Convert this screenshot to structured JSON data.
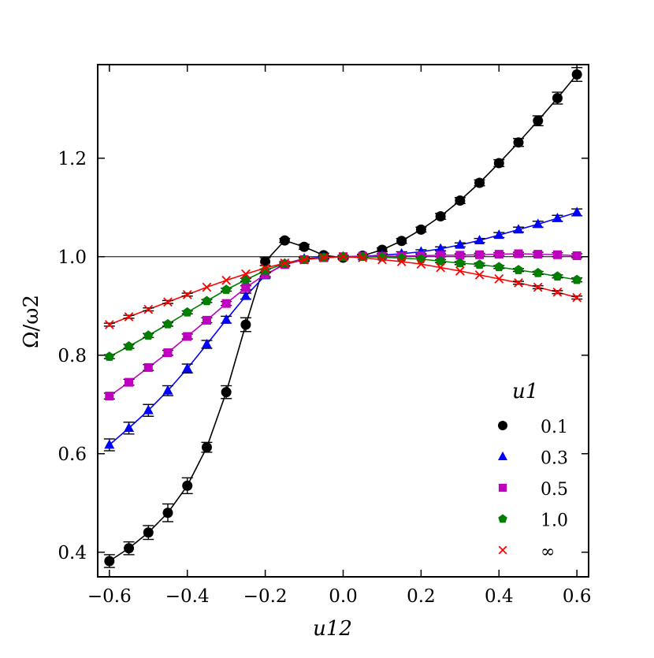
{
  "chart_data": {
    "type": "line",
    "title": "",
    "xlabel": "u12",
    "ylabel": "Ω/ω2",
    "xlim": [
      -0.63,
      0.63
    ],
    "ylim": [
      0.35,
      1.39
    ],
    "xticks": [
      -0.6,
      -0.4,
      -0.2,
      0.0,
      0.2,
      0.4,
      0.6
    ],
    "xtick_labels": [
      "−0.6",
      "−0.4",
      "−0.2",
      "0.0",
      "0.2",
      "0.4",
      "0.6"
    ],
    "yticks": [
      0.4,
      0.6,
      0.8,
      1.0,
      1.2
    ],
    "ytick_labels": [
      "0.4",
      "0.6",
      "0.8",
      "1.0",
      "1.2"
    ],
    "reference_line": 1.0,
    "legend_title": "u1",
    "legend_position": "lower-right",
    "grid": false,
    "x": [
      -0.6,
      -0.55,
      -0.5,
      -0.45,
      -0.4,
      -0.35,
      -0.3,
      -0.25,
      -0.2,
      -0.15,
      -0.1,
      -0.05,
      0.0,
      0.05,
      0.1,
      0.15,
      0.2,
      0.25,
      0.3,
      0.35,
      0.4,
      0.45,
      0.5,
      0.55,
      0.6
    ],
    "series": [
      {
        "name": "0.1",
        "marker": "circle",
        "color": "#000000",
        "values": [
          0.382,
          0.408,
          0.44,
          0.48,
          0.535,
          0.613,
          0.725,
          0.862,
          0.99,
          1.033,
          1.02,
          1.003,
          0.998,
          1.002,
          1.014,
          1.032,
          1.055,
          1.082,
          1.114,
          1.15,
          1.19,
          1.232,
          1.276,
          1.322,
          1.37
        ],
        "errors": [
          0.013,
          0.013,
          0.014,
          0.018,
          0.016,
          0.01,
          0.013,
          0.014,
          0.008,
          0.004,
          0.005,
          0.004,
          0.003,
          0.003,
          0.004,
          0.005,
          0.005,
          0.006,
          0.006,
          0.006,
          0.007,
          0.008,
          0.01,
          0.012,
          0.014
        ]
      },
      {
        "name": "0.3",
        "marker": "triangle",
        "color": "#0000ff",
        "values": [
          0.618,
          0.652,
          0.688,
          0.728,
          0.773,
          0.822,
          0.872,
          0.92,
          0.962,
          0.986,
          0.996,
          0.999,
          1.0,
          1.001,
          1.003,
          1.006,
          1.01,
          1.016,
          1.024,
          1.033,
          1.044,
          1.055,
          1.066,
          1.078,
          1.09
        ],
        "errors": [
          0.012,
          0.012,
          0.012,
          0.01,
          0.009,
          0.008,
          0.007,
          0.006,
          0.005,
          0.004,
          0.003,
          0.003,
          0.003,
          0.003,
          0.003,
          0.004,
          0.004,
          0.004,
          0.004,
          0.004,
          0.005,
          0.005,
          0.006,
          0.006,
          0.007
        ]
      },
      {
        "name": "0.5",
        "marker": "square",
        "color": "#bf00bf",
        "values": [
          0.717,
          0.745,
          0.775,
          0.805,
          0.838,
          0.871,
          0.905,
          0.937,
          0.964,
          0.984,
          0.994,
          0.998,
          1.0,
          1.001,
          1.001,
          1.001,
          1.002,
          1.003,
          1.003,
          1.004,
          1.005,
          1.006,
          1.005,
          1.004,
          1.002
        ],
        "errors": [
          0.006,
          0.006,
          0.006,
          0.005,
          0.005,
          0.005,
          0.004,
          0.004,
          0.004,
          0.003,
          0.003,
          0.003,
          0.002,
          0.002,
          0.002,
          0.002,
          0.003,
          0.003,
          0.003,
          0.003,
          0.003,
          0.003,
          0.004,
          0.004,
          0.004
        ]
      },
      {
        "name": "1.0",
        "marker": "pentagon",
        "color": "#007f00",
        "values": [
          0.797,
          0.818,
          0.84,
          0.863,
          0.887,
          0.91,
          0.933,
          0.953,
          0.972,
          0.986,
          0.994,
          0.998,
          1.0,
          1.0,
          0.999,
          0.997,
          0.995,
          0.991,
          0.987,
          0.984,
          0.979,
          0.973,
          0.967,
          0.96,
          0.953
        ],
        "errors": [
          0.004,
          0.004,
          0.004,
          0.004,
          0.003,
          0.003,
          0.003,
          0.003,
          0.003,
          0.002,
          0.002,
          0.002,
          0.002,
          0.002,
          0.002,
          0.002,
          0.002,
          0.003,
          0.003,
          0.003,
          0.003,
          0.003,
          0.003,
          0.003,
          0.004
        ]
      },
      {
        "name": "∞",
        "marker": "x",
        "color": "#ff0000",
        "values": [
          0.862,
          0.878,
          0.893,
          0.908,
          0.923,
          0.938,
          0.952,
          0.965,
          0.977,
          0.987,
          0.994,
          0.998,
          1.0,
          0.998,
          0.994,
          0.99,
          0.985,
          0.978,
          0.971,
          0.963,
          0.955,
          0.947,
          0.938,
          0.928,
          0.917
        ],
        "errors": [
          0.003,
          0.003,
          0.003,
          0.003,
          0.003,
          0.002,
          0.002,
          0.002,
          0.002,
          0.002,
          0.002,
          0.002,
          0.002,
          0.002,
          0.002,
          0.002,
          0.002,
          0.002,
          0.002,
          0.002,
          0.002,
          0.003,
          0.003,
          0.003,
          0.003
        ]
      }
    ]
  }
}
